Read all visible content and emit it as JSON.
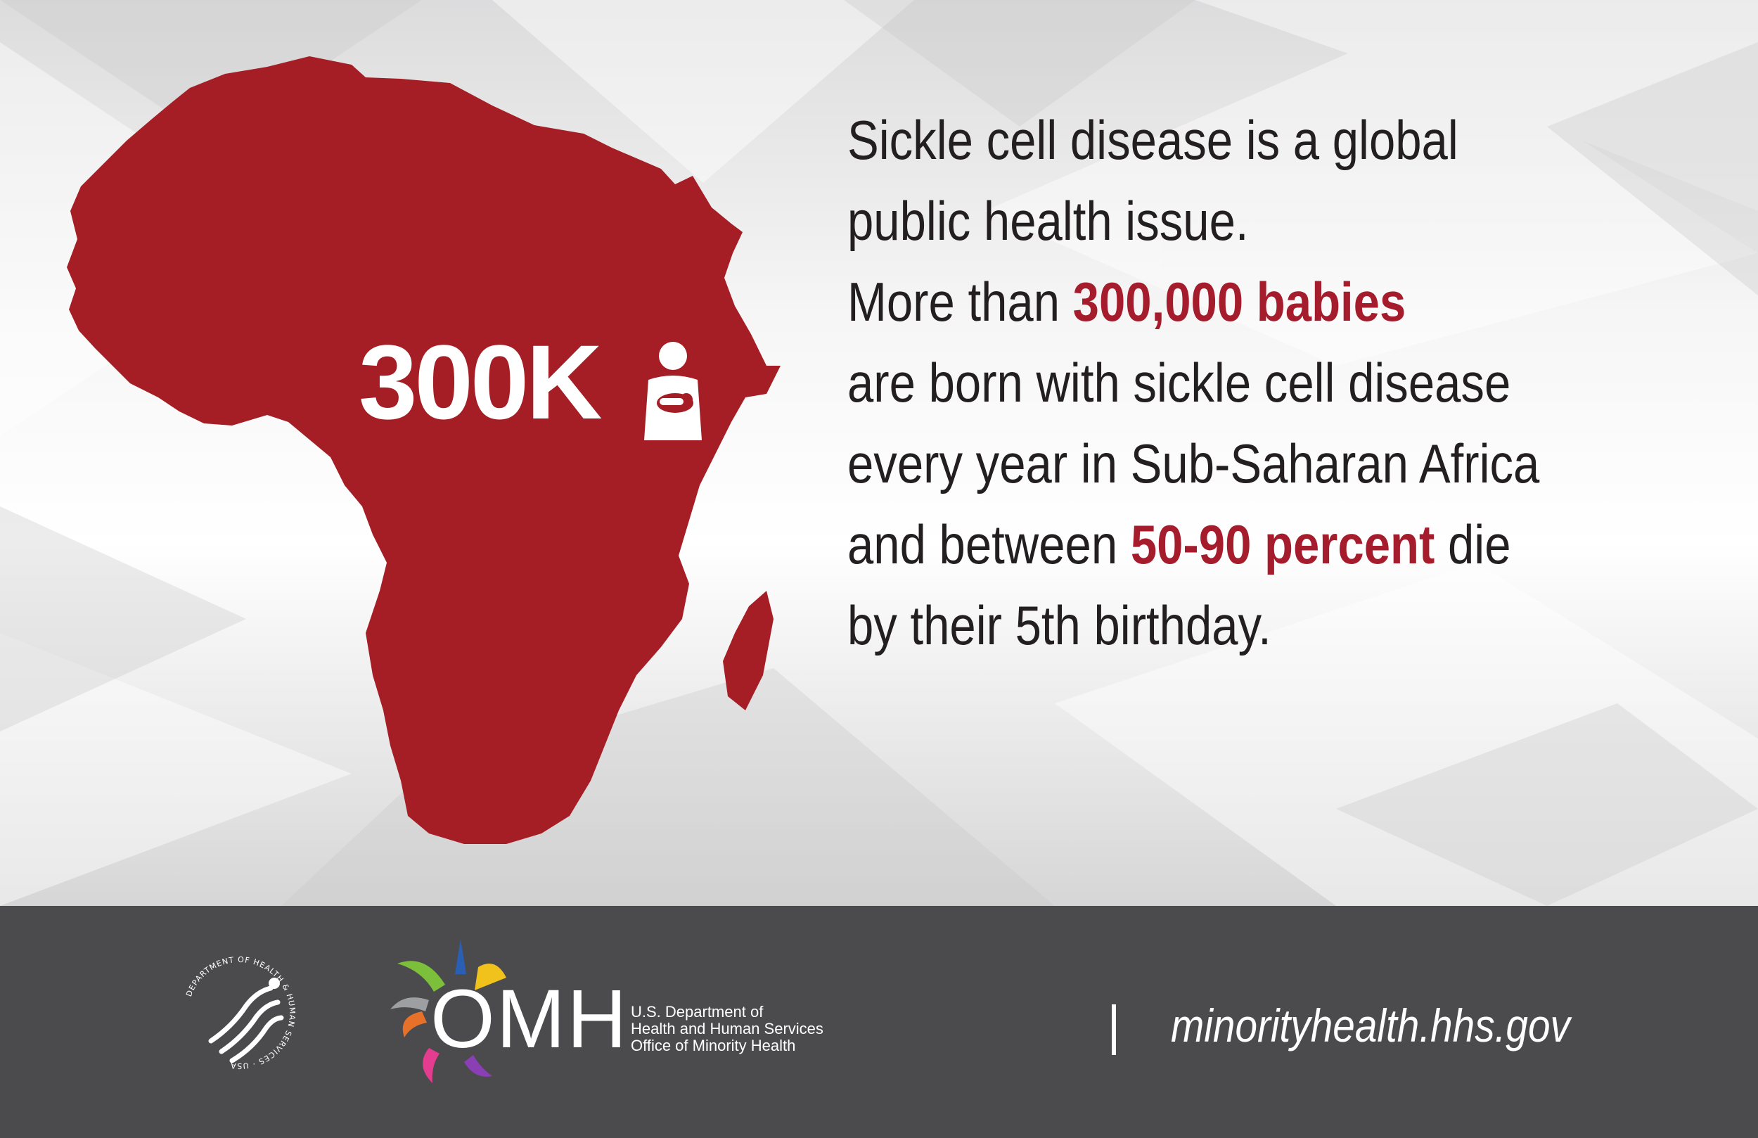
{
  "headline": {
    "line1": "Sickle cell disease is a global",
    "line2": "public health issue."
  },
  "body": {
    "l1_pre": "More than ",
    "l1_hl": "300,000 babies",
    "l2": "are born with sickle cell disease",
    "l3": "every year in Sub-Saharan Africa",
    "l4_pre": "and between ",
    "l4_hl": "50-90 percent",
    "l4_post": " die",
    "l5": "by their 5th birthday."
  },
  "stat": {
    "number": "300K",
    "icon": "mother-holding-baby-icon"
  },
  "map": {
    "region": "Africa",
    "icon": "africa-map"
  },
  "footer": {
    "seal_text": "DEPARTMENT OF HEALTH & HUMAN SERVICES · USA",
    "omh_letters": "OMH",
    "org_line1": "U.S. Department of",
    "org_line2": "Health and Human Services",
    "org_line3": "Office of Minority Health",
    "url": "minorityhealth.hhs.gov"
  },
  "colors": {
    "accent_red": "#a51d2c",
    "map_red": "#a51e25",
    "text_dark": "#231f20",
    "footer_gray": "#4b4b4d"
  }
}
